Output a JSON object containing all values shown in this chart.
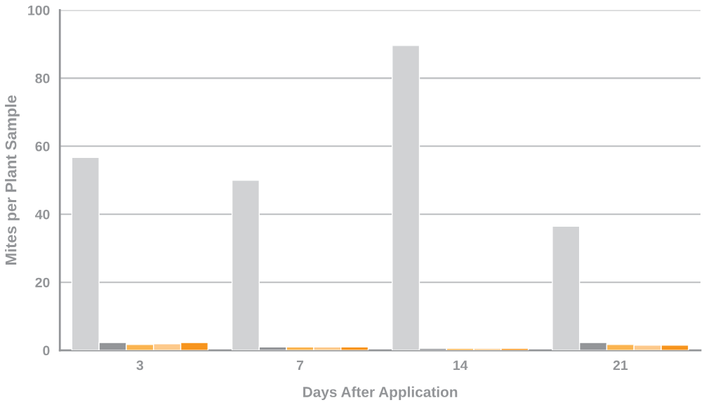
{
  "chart_data": {
    "type": "bar",
    "xlabel": "Days After Application",
    "ylabel": "Mites per Plant Sample",
    "categories": [
      "3",
      "7",
      "14",
      "21"
    ],
    "series": [
      {
        "color": "#d1d2d4",
        "values": [
          56.7,
          50,
          89.6,
          36.5
        ]
      },
      {
        "color": "#939598",
        "values": [
          2.3,
          1.0,
          0.6,
          2.3
        ]
      },
      {
        "color": "#fbb450",
        "values": [
          1.7,
          1.0,
          0.6,
          1.7
        ]
      },
      {
        "color": "#fdc98b",
        "values": [
          1.9,
          1.0,
          0.6,
          1.5
        ]
      },
      {
        "color": "#f7941d",
        "values": [
          2.3,
          1.0,
          0.6,
          1.5
        ]
      }
    ],
    "ylim": [
      0,
      100
    ],
    "yticks": [
      0,
      20,
      40,
      60,
      80,
      100
    ],
    "grid": "y",
    "legend": false
  }
}
